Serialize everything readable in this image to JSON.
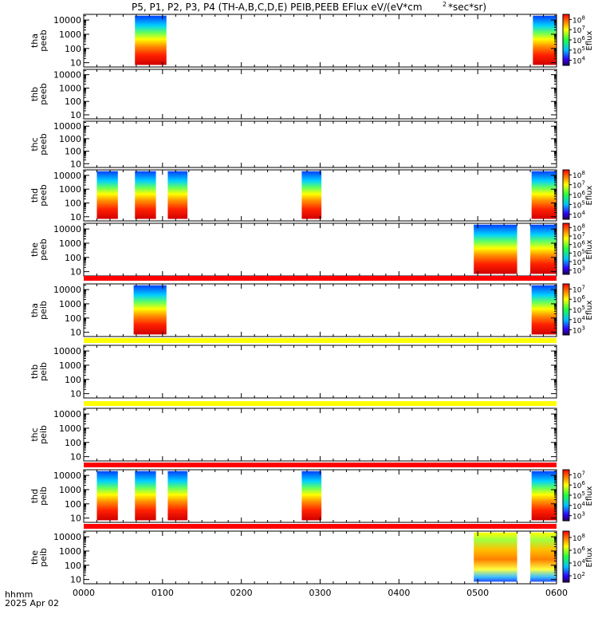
{
  "title": "P5, P1, P2, P3, P4 (TH-A,B,C,D,E) PEIB,PEEB EFlux eV/(eV*cm2*sec*sr)",
  "title_main": "P5, P1, P2, P3, P4 (TH-A,B,C,D,E) PEIB,PEEB EFlux eV/(eV*cm",
  "title_sup": "2",
  "title_tail": "*sec*sr)",
  "footer": {
    "line1": "hhmm",
    "line2": "2025 Apr 02"
  },
  "colors": {
    "red_bar": "#ff0000",
    "yellow_bar": "#ffff00"
  },
  "chart_data": {
    "type": "heatmap",
    "x": {
      "label": "hhmm",
      "ticks": [
        "0000",
        "0100",
        "0200",
        "0300",
        "0400",
        "0500",
        "0600"
      ],
      "range_minutes": [
        0,
        360
      ]
    },
    "y": {
      "scale": "log",
      "ticks": [
        "10",
        "100",
        "1000",
        "10000"
      ],
      "range_eV": [
        5,
        25000
      ]
    },
    "colorbar_label": "Eflux",
    "panels": [
      {
        "name": "tha peeb",
        "label1": "tha",
        "label2": "peeb",
        "data_minutes": [
          [
            39,
            63
          ],
          [
            342,
            360
          ]
        ],
        "colorbar": [
          "10^4",
          "10^5",
          "10^6",
          "10^7",
          "10^8"
        ]
      },
      {
        "name": "thb peeb",
        "label1": "thb",
        "label2": "peeb",
        "data_minutes": [],
        "colorbar": []
      },
      {
        "name": "thc peeb",
        "label1": "thc",
        "label2": "peeb",
        "data_minutes": [],
        "colorbar": []
      },
      {
        "name": "thd peeb",
        "label1": "thd",
        "label2": "peeb",
        "data_minutes": [
          [
            10,
            26
          ],
          [
            39,
            55
          ],
          [
            64,
            79
          ],
          [
            166,
            181
          ],
          [
            341,
            360
          ]
        ],
        "colorbar": [
          "10^4",
          "10^5",
          "10^6",
          "10^7",
          "10^8"
        ]
      },
      {
        "name": "the peeb",
        "label1": "the",
        "label2": "peeb",
        "data_minutes": [
          [
            297,
            330
          ],
          [
            340,
            360
          ]
        ],
        "colorbar": [
          "10^3",
          "10^4",
          "10^5",
          "10^6",
          "10^7",
          "10^8"
        ]
      },
      {
        "name": "tha peib",
        "label1": "tha",
        "label2": "peib",
        "data_minutes": [
          [
            38,
            63
          ],
          [
            341,
            360
          ]
        ],
        "colorbar": [
          "10^3",
          "10^4",
          "10^5",
          "10^6",
          "10^7"
        ]
      },
      {
        "name": "thb peib",
        "label1": "thb",
        "label2": "peib",
        "data_minutes": [],
        "colorbar": []
      },
      {
        "name": "thc peib",
        "label1": "thc",
        "label2": "peib",
        "data_minutes": [],
        "colorbar": []
      },
      {
        "name": "thd peib",
        "label1": "thd",
        "label2": "peib",
        "data_minutes": [
          [
            10,
            26
          ],
          [
            39,
            55
          ],
          [
            64,
            79
          ],
          [
            166,
            181
          ],
          [
            341,
            360
          ]
        ],
        "colorbar": [
          "10^3",
          "10^4",
          "10^5",
          "10^6",
          "10^7"
        ]
      },
      {
        "name": "the peib",
        "label1": "the",
        "label2": "peib",
        "data_minutes": [
          [
            297,
            330
          ],
          [
            340,
            360
          ]
        ],
        "colorbar": [
          "10^2",
          "10^4",
          "10^6",
          "10^8"
        ]
      }
    ],
    "bars_between_panels": [
      {
        "after_panel": 4,
        "color": "red"
      },
      {
        "after_panel": 5,
        "color": "yellow"
      },
      {
        "after_panel": 6,
        "color": "yellow"
      },
      {
        "after_panel": 7,
        "color": "red"
      },
      {
        "after_panel": 8,
        "color": "red"
      }
    ]
  }
}
